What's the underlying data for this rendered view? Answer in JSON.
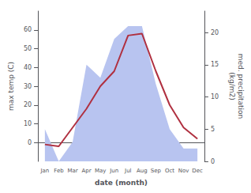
{
  "chart_data": {
    "type": "line",
    "xlabel": "date (month)",
    "ylabel": "max temp (C)",
    "y2label": "med. precipitation\n(kg/m2)",
    "categories": [
      "Jan",
      "Feb",
      "Mar",
      "Apr",
      "May",
      "Jun",
      "Jul",
      "Aug",
      "Sep",
      "Oct",
      "Nov",
      "Dec"
    ],
    "series": [
      {
        "type": "area",
        "color": "#b8c4f0",
        "axis": "y2",
        "values": [
          5,
          0,
          3,
          15,
          13,
          19,
          21,
          21,
          12,
          5,
          2,
          2
        ]
      },
      {
        "type": "line",
        "color": "#b03040",
        "values": [
          -1,
          -2,
          8,
          18,
          30,
          38,
          57,
          58,
          38,
          20,
          8,
          2
        ]
      }
    ],
    "ylim": [
      -10,
      70
    ],
    "yticks": [
      0,
      10,
      20,
      30,
      40,
      50,
      60
    ],
    "y2lim": [
      0,
      23.33
    ],
    "y2ticks": [
      0,
      5,
      10,
      15,
      20
    ],
    "grid": false
  }
}
